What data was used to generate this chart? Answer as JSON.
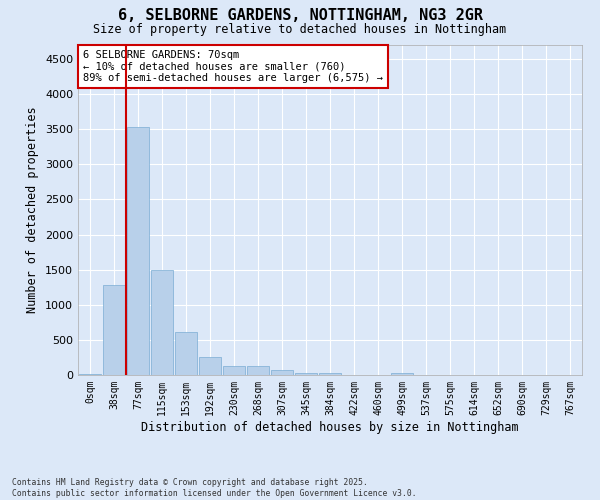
{
  "title": "6, SELBORNE GARDENS, NOTTINGHAM, NG3 2GR",
  "subtitle": "Size of property relative to detached houses in Nottingham",
  "xlabel": "Distribution of detached houses by size in Nottingham",
  "ylabel": "Number of detached properties",
  "bar_color": "#b8d0ea",
  "bar_edgecolor": "#7aadd4",
  "background_color": "#dce8f8",
  "grid_color": "#ffffff",
  "fig_facecolor": "#dce8f8",
  "annotation_box_color": "#cc0000",
  "property_line_color": "#cc0000",
  "annotation_line1": "6 SELBORNE GARDENS: 70sqm",
  "annotation_line2": "← 10% of detached houses are smaller (760)",
  "annotation_line3": "89% of semi-detached houses are larger (6,575) →",
  "categories": [
    "0sqm",
    "38sqm",
    "77sqm",
    "115sqm",
    "153sqm",
    "192sqm",
    "230sqm",
    "268sqm",
    "307sqm",
    "345sqm",
    "384sqm",
    "422sqm",
    "460sqm",
    "499sqm",
    "537sqm",
    "575sqm",
    "614sqm",
    "652sqm",
    "690sqm",
    "729sqm",
    "767sqm"
  ],
  "values": [
    20,
    1280,
    3530,
    1500,
    610,
    255,
    130,
    130,
    70,
    30,
    25,
    0,
    0,
    35,
    0,
    0,
    0,
    0,
    0,
    0,
    0
  ],
  "ylim": [
    0,
    4700
  ],
  "yticks": [
    0,
    500,
    1000,
    1500,
    2000,
    2500,
    3000,
    3500,
    4000,
    4500
  ],
  "footnote": "Contains HM Land Registry data © Crown copyright and database right 2025.\nContains public sector information licensed under the Open Government Licence v3.0."
}
